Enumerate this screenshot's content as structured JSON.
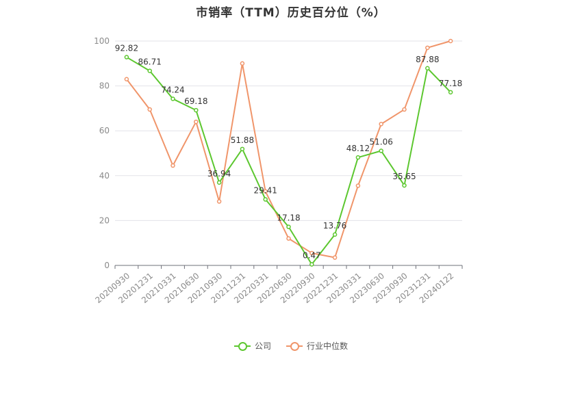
{
  "chart_data": {
    "type": "line",
    "title": "市销率（TTM）历史百分位（%）",
    "categories": [
      "20200930",
      "20201231",
      "20210331",
      "20210630",
      "20210930",
      "20211231",
      "20220331",
      "20220630",
      "20220930",
      "20221231",
      "20230331",
      "20230630",
      "20230930",
      "20231231",
      "20240122"
    ],
    "ylim": [
      0,
      100
    ],
    "yticks": [
      0,
      20,
      40,
      60,
      80,
      100
    ],
    "grid": true,
    "legend_position": "bottom",
    "series": [
      {
        "name": "公司",
        "color": "#5cc72f",
        "values": [
          92.82,
          86.71,
          74.24,
          69.18,
          36.94,
          51.88,
          29.41,
          17.18,
          0.47,
          13.76,
          48.12,
          51.06,
          35.65,
          87.88,
          77.18
        ],
        "labels": [
          "92.82",
          "86.71",
          "74.24",
          "69.18",
          "36.94",
          "51.88",
          "29.41",
          "17.18",
          "0.47",
          "13.76",
          "48.12",
          "51.06",
          "35.65",
          "87.88",
          "77.18"
        ]
      },
      {
        "name": "行业中位数",
        "color": "#f0956a",
        "values": [
          83,
          69.5,
          44.5,
          64,
          28.5,
          90,
          33,
          12,
          5.5,
          3.5,
          35.5,
          63,
          69.5,
          97,
          100
        ]
      }
    ]
  }
}
